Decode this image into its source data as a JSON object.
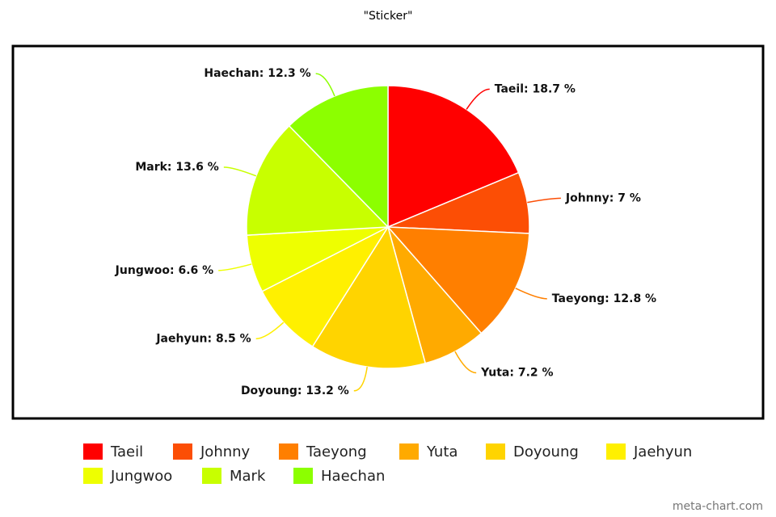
{
  "chart_data": {
    "type": "pie",
    "title": "\"Sticker\"",
    "categories": [
      "Taeil",
      "Johnny",
      "Taeyong",
      "Yuta",
      "Doyoung",
      "Jaehyun",
      "Jungwoo",
      "Mark",
      "Haechan"
    ],
    "values": [
      18.7,
      7,
      12.8,
      7.2,
      13.2,
      8.5,
      6.6,
      13.6,
      12.3
    ],
    "value_labels": [
      "Taeil: 18.7 %",
      "Johnny: 7 %",
      "Taeyong: 12.8 %",
      "Yuta: 7.2 %",
      "Doyoung: 13.2 %",
      "Jaehyun: 8.5 %",
      "Jungwoo: 6.6 %",
      "Mark: 13.6 %",
      "Haechan: 12.3 %"
    ],
    "colors": [
      "#ff0000",
      "#fc4e05",
      "#ff7f00",
      "#ffaa00",
      "#ffd400",
      "#fff000",
      "#eeff00",
      "#c8ff00",
      "#8cff00"
    ],
    "legend": "bottom",
    "watermark": "meta-chart.com"
  }
}
